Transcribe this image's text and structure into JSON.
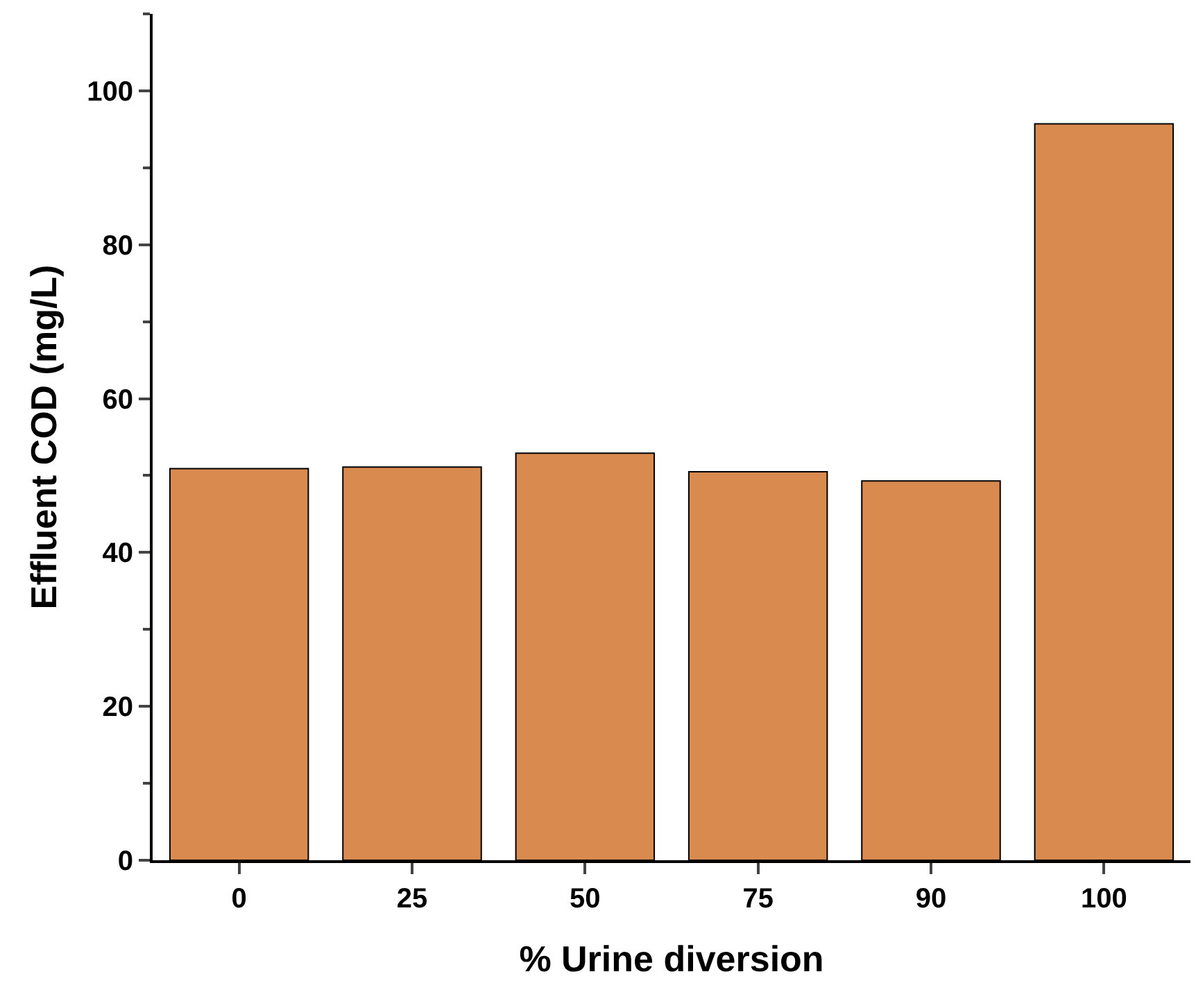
{
  "chart_data": {
    "type": "bar",
    "xlabel": "% Urine diversion",
    "ylabel": "Effluent COD (mg/L)",
    "categories": [
      "0",
      "25",
      "50",
      "75",
      "90",
      "100"
    ],
    "values": [
      50.9,
      51.1,
      52.9,
      50.5,
      49.3,
      95.7
    ],
    "color": "#d98a4e",
    "ylim": [
      0,
      110
    ],
    "yticks": [
      0,
      20,
      40,
      60,
      80,
      100
    ],
    "grid": false
  }
}
